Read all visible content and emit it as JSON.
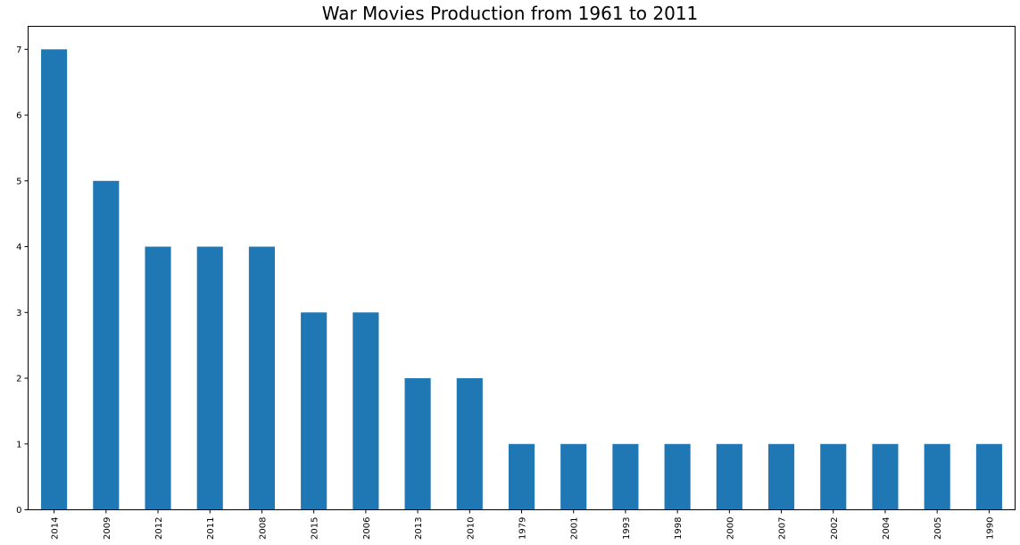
{
  "chart_data": {
    "type": "bar",
    "title": "War Movies Production from 1961 to 2011",
    "xlabel": "",
    "ylabel": "",
    "categories": [
      "2014",
      "2009",
      "2012",
      "2011",
      "2008",
      "2015",
      "2006",
      "2013",
      "2010",
      "1979",
      "2001",
      "1993",
      "1998",
      "2000",
      "2007",
      "2002",
      "2004",
      "2005",
      "1990"
    ],
    "values": [
      7,
      5,
      4,
      4,
      4,
      3,
      3,
      2,
      2,
      1,
      1,
      1,
      1,
      1,
      1,
      1,
      1,
      1,
      1
    ],
    "ylim": [
      0,
      7.35
    ],
    "yticks": [
      "0",
      "1",
      "2",
      "3",
      "4",
      "5",
      "6",
      "7"
    ],
    "grid": false,
    "bar_color": "#1f77b4"
  }
}
